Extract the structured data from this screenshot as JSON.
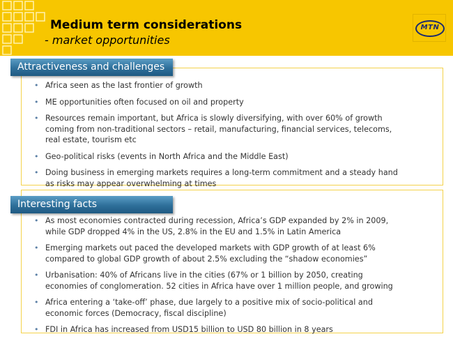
{
  "header": {
    "title": "Medium term considerations",
    "subtitle": "- market opportunities",
    "logo_text": "MTN",
    "accent_color": "#f7c600"
  },
  "sections": [
    {
      "title": "Attractiveness and challenges",
      "bullets": [
        "Africa seen as the last frontier of growth",
        "ME opportunities often focused on oil and property",
        "Resources remain important, but Africa is slowly diversifying, with over 60% of growth coming from non-traditional sectors – retail, manufacturing, financial services, telecoms, real estate, tourism etc",
        "Geo-political risks (events in North Africa and the Middle East)",
        "Doing business in emerging markets requires a long-term commitment and a steady hand as risks may appear overwhelming at times"
      ]
    },
    {
      "title": "Interesting facts",
      "bullets": [
        "As most economies contracted during recession, Africa’s GDP expanded by 2% in 2009, while GDP dropped 4% in the US, 2.8% in the EU and 1.5% in Latin America",
        "Emerging markets out paced the developed markets with GDP growth of at least 6% compared to global GDP growth of about 2.5% excluding the “shadow economies”",
        "Urbanisation: 40% of Africans live in the cities (67% or 1 billion by 2050, creating economies of conglomeration. 52 cities in Africa have over 1 million people, and growing",
        "Africa entering a ‘take-off’ phase, due largely to a positive mix of socio-political and economic forces (Democracy, fiscal discipline)",
        "FDI in Africa has increased from USD15 billion to USD 80 billion in 8 years"
      ]
    }
  ]
}
